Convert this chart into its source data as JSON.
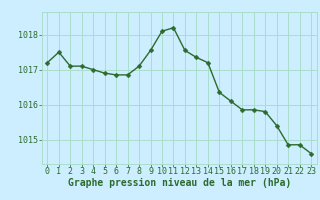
{
  "x": [
    0,
    1,
    2,
    3,
    4,
    5,
    6,
    7,
    8,
    9,
    10,
    11,
    12,
    13,
    14,
    15,
    16,
    17,
    18,
    19,
    20,
    21,
    22,
    23
  ],
  "y": [
    1017.2,
    1017.5,
    1017.1,
    1017.1,
    1017.0,
    1016.9,
    1016.85,
    1016.85,
    1017.1,
    1017.55,
    1018.1,
    1018.2,
    1017.55,
    1017.35,
    1017.2,
    1016.35,
    1016.1,
    1015.85,
    1015.85,
    1015.8,
    1015.4,
    1014.85,
    1014.85,
    1014.6
  ],
  "line_color": "#2d6a2d",
  "marker": "D",
  "marker_size": 2.5,
  "line_width": 1.0,
  "bg_color": "#cceeff",
  "grid_color": "#aaddcc",
  "xlabel": "Graphe pression niveau de la mer (hPa)",
  "xlabel_color": "#2d6a2d",
  "xlabel_fontsize": 7,
  "tick_color": "#2d6a2d",
  "tick_fontsize": 6,
  "ytick_labels": [
    "1015",
    "1016",
    "1017",
    "1018"
  ],
  "ytick_values": [
    1015,
    1016,
    1017,
    1018
  ],
  "ylim": [
    1014.3,
    1018.65
  ],
  "xlim": [
    -0.5,
    23.5
  ]
}
